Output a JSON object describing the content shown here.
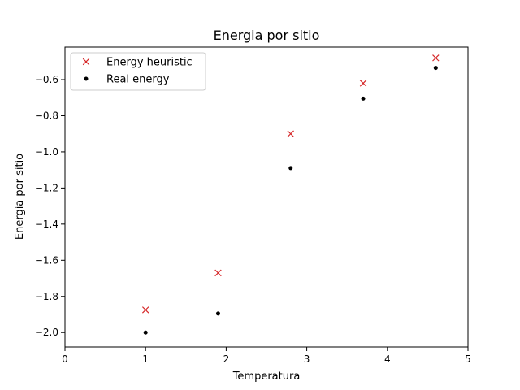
{
  "chart_data": {
    "type": "scatter",
    "title": "Energia por sitio",
    "xlabel": "Temperatura",
    "ylabel": "Energia por sitio",
    "xlim": [
      0,
      5
    ],
    "ylim": [
      -2.08,
      -0.42
    ],
    "xticks": [
      0,
      1,
      2,
      3,
      4,
      5
    ],
    "yticks": [
      -2.0,
      -1.8,
      -1.6,
      -1.4,
      -1.2,
      -1.0,
      -0.8,
      -0.6
    ],
    "xtick_labels": [
      "0",
      "1",
      "2",
      "3",
      "4",
      "5"
    ],
    "ytick_labels": [
      "−2.0",
      "−1.8",
      "−1.6",
      "−1.4",
      "−1.2",
      "−1.0",
      "−0.8",
      "−0.6"
    ],
    "grid": false,
    "legend_position": "top-left",
    "series": [
      {
        "name": " Energy heuristic",
        "marker": "x",
        "color": "#d62728",
        "x": [
          1.0,
          1.9,
          2.8,
          3.7,
          4.6
        ],
        "y": [
          -1.875,
          -1.67,
          -0.9,
          -0.62,
          -0.48
        ]
      },
      {
        "name": "Real energy",
        "marker": "dot",
        "color": "#000000",
        "x": [
          1.0,
          1.9,
          2.8,
          3.7,
          4.6
        ],
        "y": [
          -2.0,
          -1.895,
          -1.09,
          -0.705,
          -0.535
        ]
      }
    ]
  }
}
